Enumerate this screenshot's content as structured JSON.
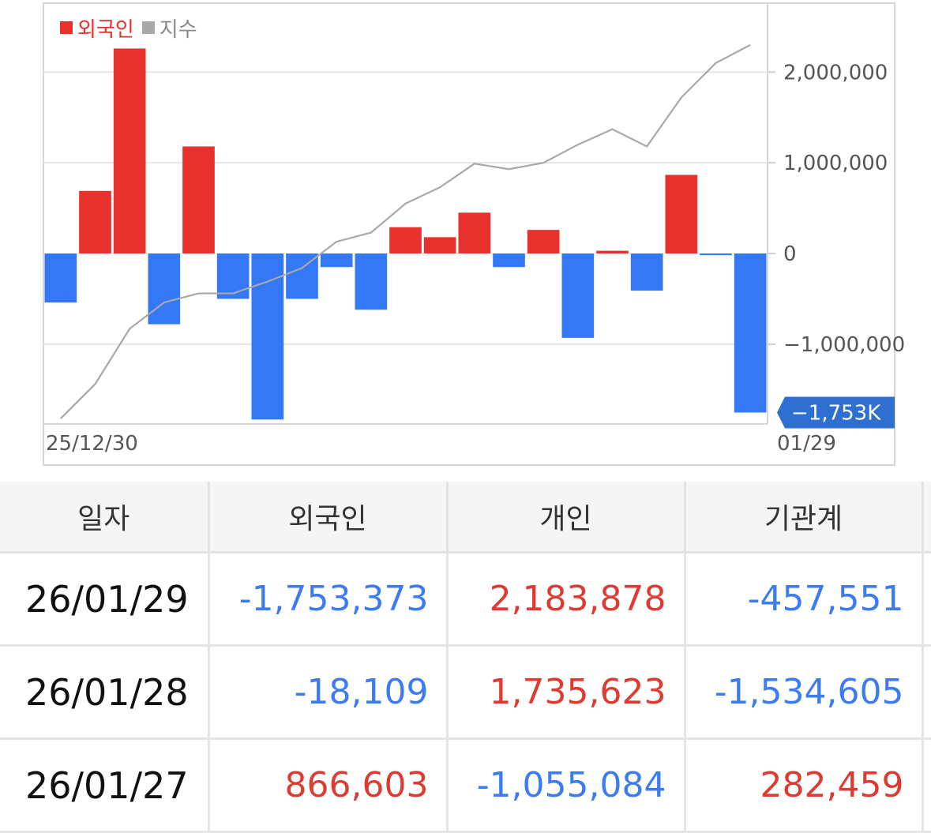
{
  "legend": {
    "foreign_label": "외국인",
    "index_label": "지수"
  },
  "colors": {
    "positive": "#e8312c",
    "negative": "#3478f6",
    "index_line": "#a8a8a8",
    "badge": "#2f6fd2"
  },
  "chart_data": {
    "type": "bar",
    "x_start_label": "25/12/30",
    "x_end_label": "01/29",
    "series": [
      {
        "name": "외국인",
        "values": [
          -540000,
          690000,
          2260000,
          -780000,
          1180000,
          -500000,
          -1830000,
          -500000,
          -150000,
          -620000,
          290000,
          180000,
          450000,
          -150000,
          260000,
          -930000,
          30000,
          -410000,
          866603,
          -18109,
          -1753373
        ]
      },
      {
        "name": "지수",
        "values": [
          -1820000,
          -1440000,
          -830000,
          -540000,
          -440000,
          -440000,
          -310000,
          -160000,
          130000,
          230000,
          550000,
          730000,
          990000,
          930000,
          1000000,
          1200000,
          1370000,
          1180000,
          1720000,
          2100000,
          2300000
        ]
      }
    ],
    "y_ticks": [
      "2,000,000",
      "1,000,000",
      "0",
      "−1,000,000"
    ],
    "y_tick_values": [
      2000000,
      1000000,
      0,
      -1000000
    ],
    "ylim": [
      -1880000,
      2760000
    ],
    "current_value_label": "−1,753K",
    "current_value": -1753373
  },
  "table": {
    "headers": [
      "일자",
      "외국인",
      "개인",
      "기관계"
    ],
    "rows": [
      {
        "date": "26/01/29",
        "foreign": "-1,753,373",
        "individual": "2,183,878",
        "institution": "-457,551"
      },
      {
        "date": "26/01/28",
        "foreign": "-18,109",
        "individual": "1,735,623",
        "institution": "-1,534,605"
      },
      {
        "date": "26/01/27",
        "foreign": "866,603",
        "individual": "-1,055,084",
        "institution": "282,459"
      }
    ]
  }
}
